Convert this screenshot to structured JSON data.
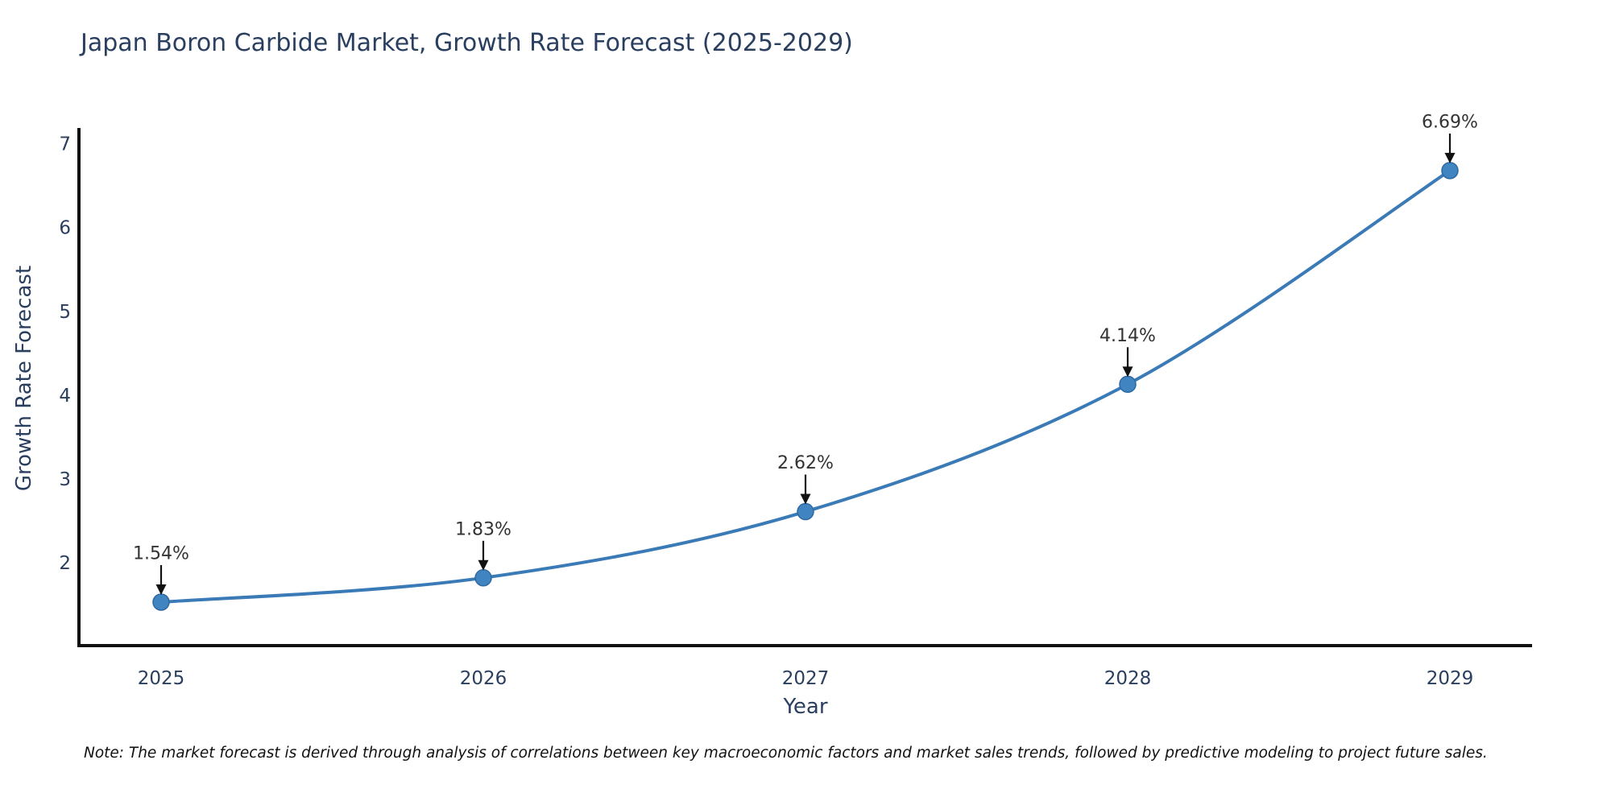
{
  "title": "Japan Boron Carbide Market, Growth Rate Forecast (2025-2029)",
  "note": "Note: The market forecast is derived through analysis of correlations between key macroeconomic factors and market sales trends, followed by predictive modeling to project future sales.",
  "chart_data": {
    "type": "line",
    "title": "Japan Boron Carbide Market, Growth Rate Forecast (2025-2029)",
    "xlabel": "Year",
    "ylabel": "Growth Rate Forecast",
    "categories": [
      2025,
      2026,
      2027,
      2028,
      2029
    ],
    "series": [
      {
        "name": "Growth Rate Forecast",
        "values": [
          1.54,
          1.83,
          2.62,
          4.14,
          6.69
        ]
      }
    ],
    "point_labels": [
      "1.54%",
      "1.83%",
      "2.62%",
      "4.14%",
      "6.69%"
    ],
    "y_ticks": [
      2,
      3,
      4,
      5,
      6,
      7
    ],
    "ylim": [
      1.02,
      7.2
    ],
    "grid": false,
    "legend_position": "none",
    "line_shape": "spline",
    "colors": {
      "line": "#3a7ab6",
      "marker_fill": "#4084c1",
      "marker_edge": "#2e699f",
      "axis": "#111111",
      "tick_label": "#2a3f5f",
      "axis_title": "#2a3f5f",
      "chart_title": "#2a3f5f",
      "annotation_text": "#333333",
      "annotation_arrow": "#111111",
      "background": "#ffffff"
    }
  }
}
